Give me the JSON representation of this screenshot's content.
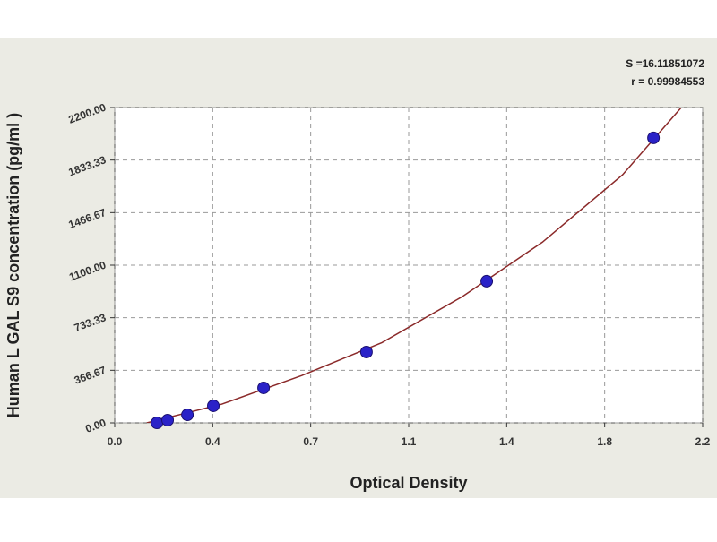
{
  "chart_data": {
    "type": "scatter",
    "annotations": [
      "S =16.11851072",
      "r = 0.99984553"
    ],
    "x_label": "Optical Density",
    "y_label": "Human L GAL S9 concentration (pg/ml )",
    "xlim": [
      0,
      2.2
    ],
    "ylim": [
      0,
      2200
    ],
    "xticks": [
      {
        "value": 0,
        "label": "0.0"
      },
      {
        "value": 0.3667,
        "label": "0.4"
      },
      {
        "value": 0.7333,
        "label": "0.7"
      },
      {
        "value": 1.1,
        "label": "1.1"
      },
      {
        "value": 1.4667,
        "label": "1.4"
      },
      {
        "value": 1.8333,
        "label": "1.8"
      },
      {
        "value": 2.2,
        "label": "2.2"
      }
    ],
    "yticks": [
      {
        "value": 0,
        "label": "0.00"
      },
      {
        "value": 366.67,
        "label": "366.67"
      },
      {
        "value": 733.33,
        "label": "733.33"
      },
      {
        "value": 1100,
        "label": "1100.00"
      },
      {
        "value": 1466.67,
        "label": "1466.67"
      },
      {
        "value": 1833.33,
        "label": "1833.33"
      },
      {
        "value": 2200,
        "label": "2200.00"
      }
    ],
    "grid": true,
    "points": {
      "color": "#2a22c8",
      "x": [
        0.158,
        0.198,
        0.272,
        0.369,
        0.557,
        0.942,
        1.392,
        2.016
      ],
      "y": [
        0,
        19,
        56,
        119,
        244,
        494,
        988,
        1988
      ]
    },
    "curve": {
      "color": "#8b2a2a",
      "x": [
        0.12,
        0.4,
        0.7,
        1.0,
        1.3,
        1.6,
        1.9,
        2.12
      ],
      "y": [
        0,
        130,
        330,
        560,
        880,
        1260,
        1730,
        2200
      ]
    }
  }
}
